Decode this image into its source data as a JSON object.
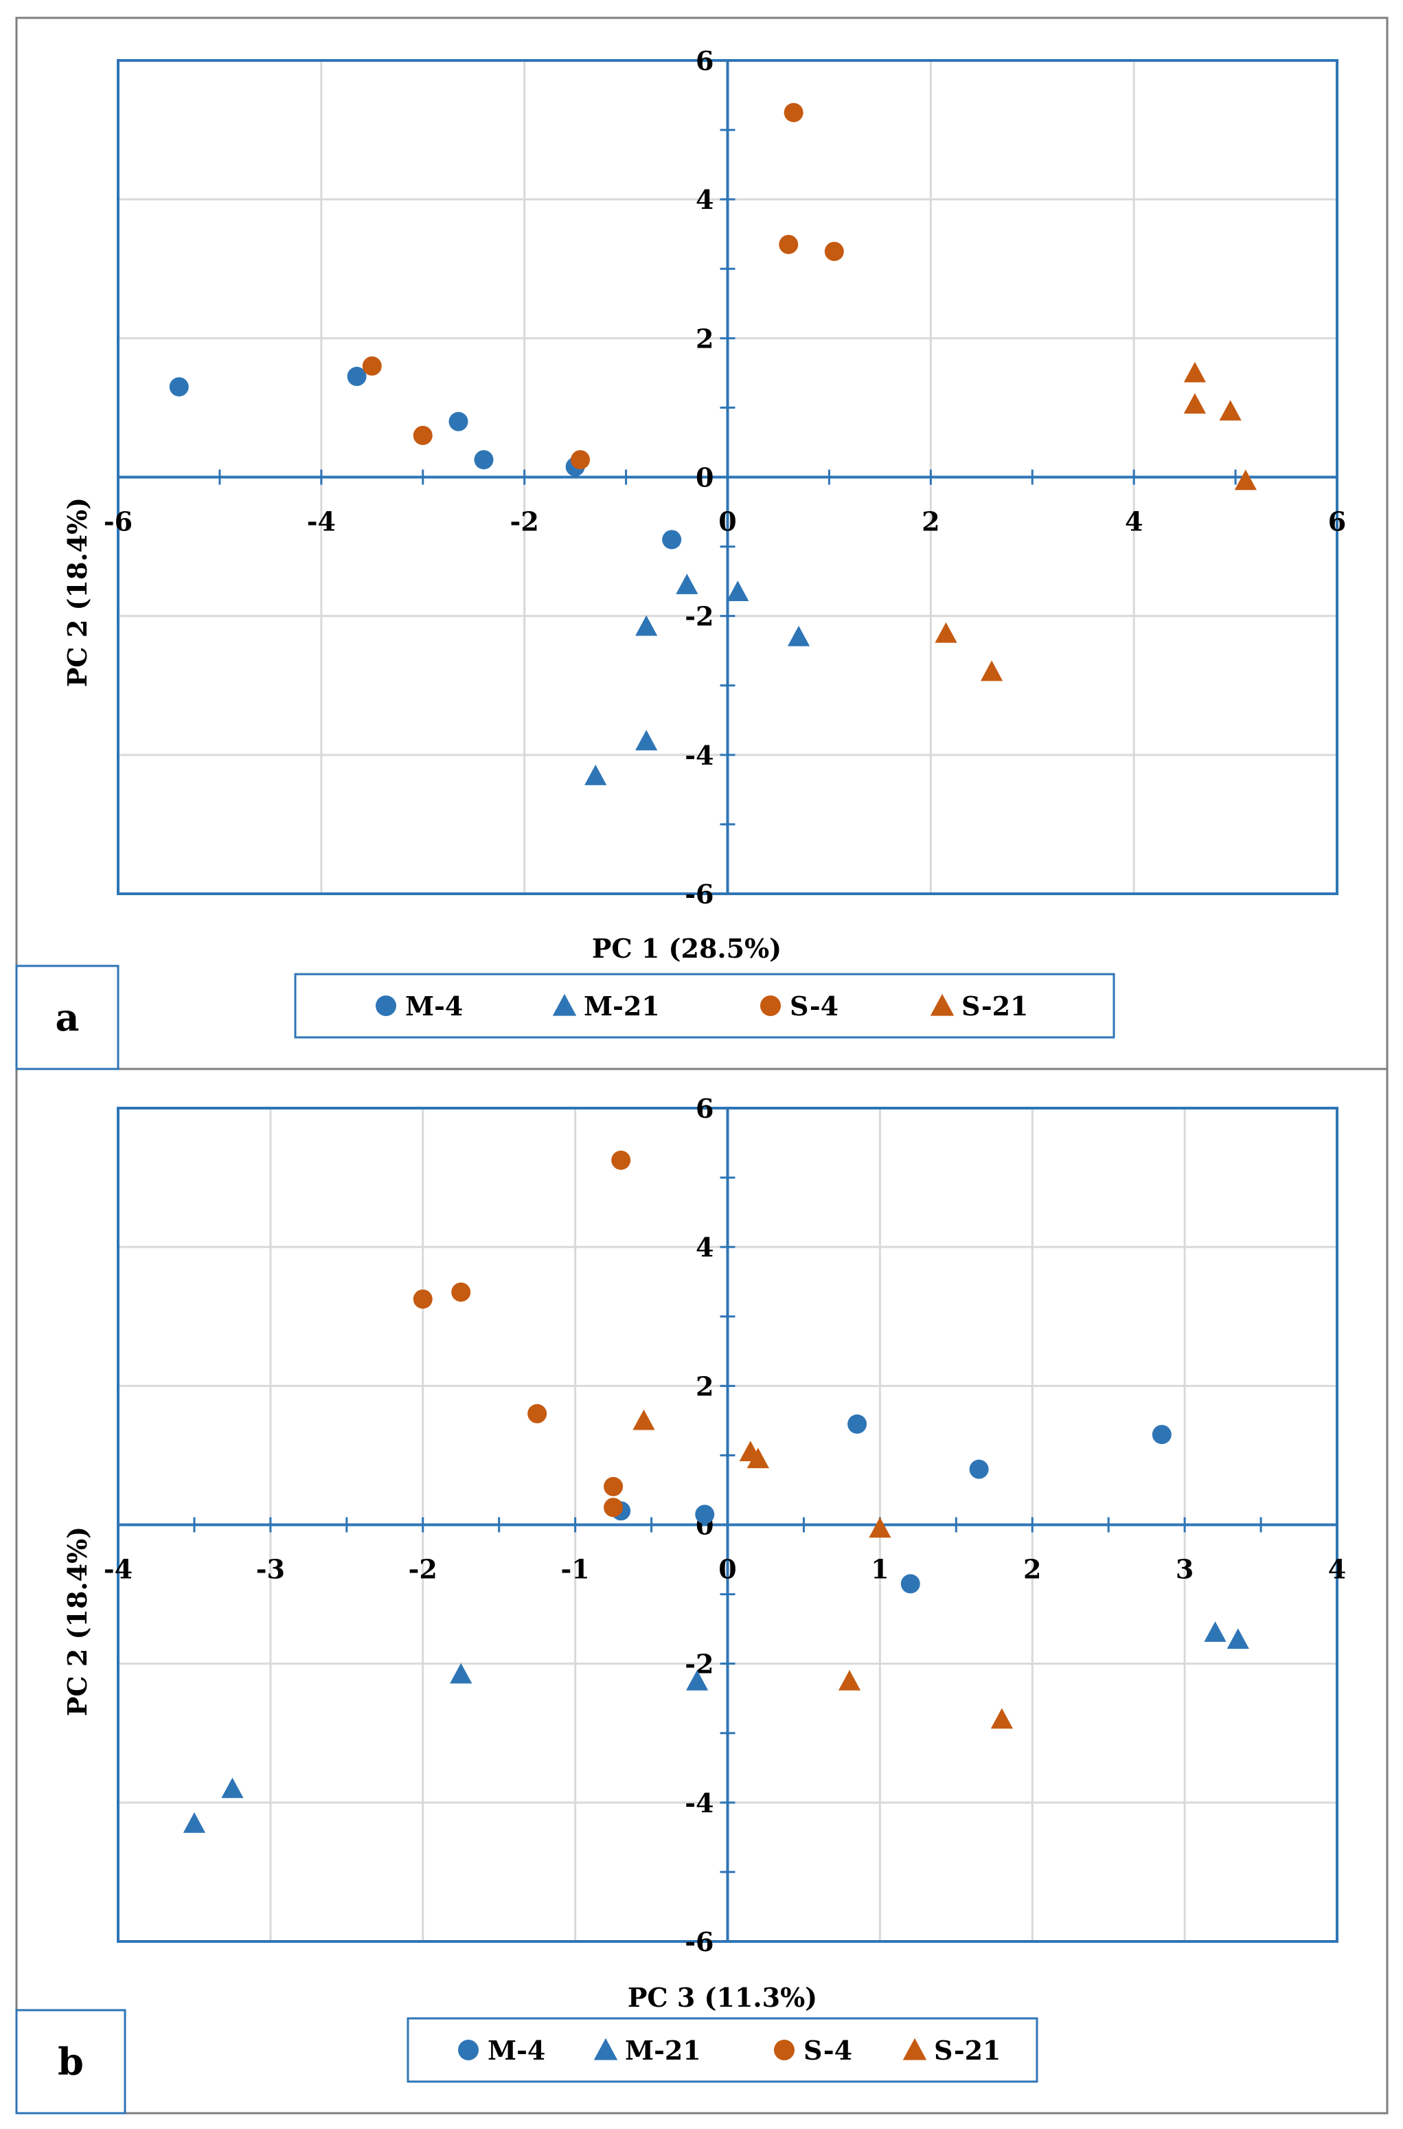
{
  "colors": {
    "blue": "#2E75B6",
    "orange": "#C55A11",
    "grid": "#D9D9D9",
    "axis": "#2E75B6",
    "frame": "#7F7F7F"
  },
  "legend_labels": [
    "M-4",
    "M-21",
    "S-4",
    "S-21"
  ],
  "chart_data": [
    {
      "type": "scatter",
      "panel": "a",
      "xlabel": "PC 1 (28.5%)",
      "ylabel": "PC 2 (18.4%)",
      "xlim": [
        -6,
        6
      ],
      "ylim": [
        -6,
        6
      ],
      "xticks": [
        -6,
        -4,
        -2,
        0,
        2,
        4,
        6
      ],
      "yticks": [
        -6,
        -4,
        -2,
        0,
        2,
        4,
        6
      ],
      "grid": true,
      "legend_position": "bottom",
      "series": [
        {
          "name": "M-4",
          "marker": "circle",
          "color": "#2E75B6",
          "points": [
            [
              -5.4,
              1.3
            ],
            [
              -3.65,
              1.45
            ],
            [
              -2.65,
              0.8
            ],
            [
              -2.4,
              0.25
            ],
            [
              -1.5,
              0.15
            ],
            [
              -0.55,
              -0.9
            ]
          ]
        },
        {
          "name": "M-21",
          "marker": "triangle",
          "color": "#2E75B6",
          "points": [
            [
              -0.4,
              -1.55
            ],
            [
              0.1,
              -1.65
            ],
            [
              -0.8,
              -2.15
            ],
            [
              0.7,
              -2.3
            ],
            [
              -0.8,
              -3.8
            ],
            [
              -1.3,
              -4.3
            ]
          ]
        },
        {
          "name": "S-4",
          "marker": "circle",
          "color": "#C55A11",
          "points": [
            [
              0.65,
              5.25
            ],
            [
              0.6,
              3.35
            ],
            [
              1.05,
              3.25
            ],
            [
              -3.5,
              1.6
            ],
            [
              -3.0,
              0.6
            ],
            [
              -1.45,
              0.25
            ]
          ]
        },
        {
          "name": "S-21",
          "marker": "triangle",
          "color": "#C55A11",
          "points": [
            [
              4.6,
              1.5
            ],
            [
              4.6,
              1.05
            ],
            [
              4.95,
              0.95
            ],
            [
              5.1,
              -0.05
            ],
            [
              2.15,
              -2.25
            ],
            [
              2.6,
              -2.8
            ]
          ]
        }
      ]
    },
    {
      "type": "scatter",
      "panel": "b",
      "xlabel": "PC 3 (11.3%)",
      "ylabel": "PC 2 (18.4%)",
      "xlim": [
        -4,
        4
      ],
      "ylim": [
        -6,
        6
      ],
      "xticks": [
        -4,
        -3,
        -2,
        -1,
        0,
        1,
        2,
        3,
        4
      ],
      "yticks": [
        -6,
        -4,
        -2,
        0,
        2,
        4,
        6
      ],
      "grid": true,
      "legend_position": "bottom",
      "series": [
        {
          "name": "M-4",
          "marker": "circle",
          "color": "#2E75B6",
          "points": [
            [
              2.85,
              1.3
            ],
            [
              0.85,
              1.45
            ],
            [
              1.65,
              0.8
            ],
            [
              -0.7,
              0.2
            ],
            [
              -0.15,
              0.15
            ],
            [
              1.2,
              -0.85
            ]
          ]
        },
        {
          "name": "M-21",
          "marker": "triangle",
          "color": "#2E75B6",
          "points": [
            [
              3.2,
              -1.55
            ],
            [
              3.35,
              -1.65
            ],
            [
              -1.75,
              -2.15
            ],
            [
              -0.2,
              -2.25
            ],
            [
              -3.25,
              -3.8
            ],
            [
              -3.5,
              -4.3
            ]
          ]
        },
        {
          "name": "S-4",
          "marker": "circle",
          "color": "#C55A11",
          "points": [
            [
              -0.7,
              5.25
            ],
            [
              -2.0,
              3.25
            ],
            [
              -1.75,
              3.35
            ],
            [
              -1.25,
              1.6
            ],
            [
              -0.75,
              0.55
            ],
            [
              -0.75,
              0.25
            ]
          ]
        },
        {
          "name": "S-21",
          "marker": "triangle",
          "color": "#C55A11",
          "points": [
            [
              -0.55,
              1.5
            ],
            [
              0.15,
              1.05
            ],
            [
              0.2,
              0.95
            ],
            [
              1.0,
              -0.05
            ],
            [
              0.8,
              -2.25
            ],
            [
              1.8,
              -2.8
            ]
          ]
        }
      ]
    }
  ]
}
